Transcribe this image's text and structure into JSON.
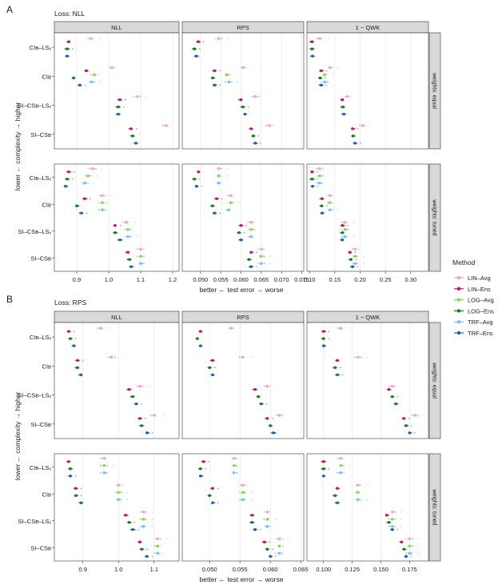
{
  "legend": {
    "title": "Method",
    "items": [
      {
        "label": "LIN–Avg",
        "color": "#f4a3c0"
      },
      {
        "label": "LIN–Ens",
        "color": "#c2185b"
      },
      {
        "label": "LOG–Avg",
        "color": "#8bd35a"
      },
      {
        "label": "LOG–Ens",
        "color": "#1b7a1b"
      },
      {
        "label": "TRF–Avg",
        "color": "#6ec3f0"
      },
      {
        "label": "TRF–Ens",
        "color": "#1f5fa8"
      }
    ]
  },
  "chart_data": [
    {
      "type": "scatter",
      "panel_letter": "A",
      "title": "Loss: NLL",
      "ylabel": "lower ← complexity → higher",
      "xlabel": "better ← test error → worse",
      "facet_columns": [
        "NLL",
        "RPS",
        "1 − QWK"
      ],
      "facet_rows": [
        "weights: equal",
        "weights: tuned"
      ],
      "categories": [
        "CI_B–LS_x",
        "CI_B",
        "SI–CS_B–LS_x",
        "SI–CS_B"
      ],
      "axes": [
        {
          "xlim": [
            0.83,
            1.22
          ],
          "ticks": [
            "0.9",
            "1.0",
            "1.1",
            "1.2"
          ]
        },
        {
          "xlim": [
            0.0455,
            0.0755
          ],
          "ticks": [
            "0.050",
            "0.055",
            "0.060",
            "0.065",
            "0.070",
            "0.075"
          ]
        },
        {
          "xlim": [
            0.095,
            0.335
          ],
          "ticks": [
            "0.10",
            "0.15",
            "0.20",
            "0.25",
            "0.30"
          ]
        }
      ],
      "grid": true,
      "series": [
        "LIN–Avg",
        "LIN–Ens",
        "LOG–Avg",
        "LOG–Ens",
        "TRF–Avg",
        "TRF–Ens"
      ],
      "means": [
        [
          [
            [
              0.945,
              0.875,
              null,
              0.87,
              null,
              0.87
            ],
            [
              1.01,
              0.93,
              0.955,
              0.89,
              0.945,
              0.91
            ],
            [
              1.09,
              1.035,
              null,
              1.03,
              null,
              1.03
            ],
            [
              1.18,
              1.07,
              null,
              1.075,
              null,
              1.085
            ]
          ],
          [
            [
              0.0545,
              0.0495,
              null,
              0.0485,
              null,
              0.049
            ],
            [
              0.0605,
              0.0535,
              0.0565,
              0.053,
              0.057,
              0.0535
            ],
            [
              0.0635,
              0.06,
              null,
              0.0605,
              null,
              0.061
            ],
            [
              0.067,
              0.0625,
              null,
              0.063,
              null,
              0.0635
            ]
          ],
          [
            [
              0.12,
              0.105,
              null,
              0.105,
              null,
              0.106
            ],
            [
              0.14,
              0.123,
              0.13,
              0.121,
              0.13,
              0.123
            ],
            [
              0.175,
              0.165,
              null,
              0.166,
              null,
              0.168
            ],
            [
              0.205,
              0.185,
              null,
              0.186,
              null,
              0.19
            ]
          ]
        ],
        [
          [
            [
              0.95,
              0.875,
              0.935,
              0.87,
              0.925,
              0.865
            ],
            [
              0.98,
              0.925,
              0.98,
              0.9,
              0.98,
              0.915
            ],
            [
              1.055,
              1.02,
              1.06,
              1.02,
              1.06,
              1.035
            ],
            [
              1.1,
              1.06,
              1.1,
              1.065,
              1.1,
              1.07
            ]
          ],
          [
            [
              0.0545,
              0.0495,
              0.0545,
              0.0485,
              0.0545,
              0.049
            ],
            [
              0.0575,
              0.054,
              0.0575,
              0.053,
              0.057,
              0.0535
            ],
            [
              0.0625,
              0.06,
              0.0625,
              0.0595,
              0.0625,
              0.06
            ],
            [
              0.065,
              0.0625,
              0.065,
              0.062,
              0.065,
              0.0625
            ]
          ],
          [
            [
              0.12,
              0.105,
              0.12,
              0.105,
              0.12,
              0.106
            ],
            [
              0.14,
              0.125,
              0.14,
              0.124,
              0.14,
              0.125
            ],
            [
              0.17,
              0.165,
              0.17,
              0.165,
              0.17,
              0.165
            ],
            [
              0.19,
              0.18,
              0.19,
              0.182,
              0.19,
              0.185
            ]
          ]
        ]
      ]
    },
    {
      "type": "scatter",
      "panel_letter": "B",
      "title": "Loss: RPS",
      "ylabel": "lower ← complexity → higher",
      "xlabel": "better ← test error → worse",
      "facet_columns": [
        "NLL",
        "RPS",
        "1 − QWK"
      ],
      "facet_rows": [
        "weights: equal",
        "weights: tuned"
      ],
      "categories": [
        "CI_B–LS_x",
        "CI_B",
        "SI–CS_B–LS_x",
        "SI–CS_B"
      ],
      "axes": [
        {
          "xlim": [
            0.82,
            1.17
          ],
          "ticks": [
            "0.9",
            "1.0",
            "1.1"
          ]
        },
        {
          "xlim": [
            0.0455,
            0.0655
          ],
          "ticks": [
            "0.050",
            "0.055",
            "0.060",
            "0.065"
          ]
        },
        {
          "xlim": [
            0.0855,
            0.1915
          ],
          "ticks": [
            "0.100",
            "0.125",
            "0.150",
            "0.175"
          ]
        }
      ],
      "grid": true,
      "series": [
        "LIN–Avg",
        "LIN–Ens",
        "LOG–Avg",
        "LOG–Ens",
        "TRF–Avg",
        "TRF–Ens"
      ],
      "means": [
        [
          [
            [
              0.95,
              0.86,
              null,
              0.865,
              null,
              0.875
            ],
            [
              0.98,
              0.885,
              null,
              0.885,
              null,
              0.895
            ],
            [
              1.06,
              1.03,
              null,
              1.04,
              null,
              1.05
            ],
            [
              1.1,
              1.06,
              null,
              1.065,
              null,
              1.08
            ]
          ],
          [
            [
              0.0535,
              0.0485,
              null,
              0.048,
              null,
              0.0485
            ],
            [
              0.0555,
              0.0505,
              null,
              0.05,
              null,
              0.0505
            ],
            [
              0.0595,
              0.0575,
              null,
              0.058,
              null,
              0.0585
            ],
            [
              0.0615,
              0.0595,
              null,
              0.06,
              null,
              0.0605
            ]
          ],
          [
            [
              0.115,
              0.1,
              null,
              0.1,
              null,
              0.1
            ],
            [
              0.13,
              0.112,
              null,
              0.11,
              null,
              0.112
            ],
            [
              0.16,
              0.157,
              null,
              0.16,
              null,
              0.163
            ],
            [
              0.18,
              0.17,
              null,
              0.172,
              null,
              0.175
            ]
          ]
        ],
        [
          [
            [
              0.96,
              0.86,
              0.96,
              0.865,
              0.96,
              0.865
            ],
            [
              1.0,
              0.88,
              1.0,
              0.88,
              1.0,
              0.895
            ],
            [
              1.07,
              1.02,
              1.07,
              1.03,
              1.07,
              1.04
            ],
            [
              1.11,
              1.06,
              1.11,
              1.065,
              1.11,
              1.08
            ]
          ],
          [
            [
              0.054,
              0.049,
              0.054,
              0.0485,
              0.054,
              0.0485
            ],
            [
              0.0555,
              0.0505,
              0.0555,
              0.05,
              0.0555,
              0.0505
            ],
            [
              0.0595,
              0.057,
              0.0595,
              0.057,
              0.0595,
              0.0575
            ],
            [
              0.0615,
              0.059,
              0.0615,
              0.0595,
              0.0615,
              0.06
            ]
          ],
          [
            [
              0.115,
              0.1,
              0.115,
              0.1,
              0.115,
              0.1
            ],
            [
              0.13,
              0.112,
              0.13,
              0.11,
              0.13,
              0.112
            ],
            [
              0.16,
              0.155,
              0.16,
              0.157,
              0.16,
              0.16
            ],
            [
              0.175,
              0.168,
              0.175,
              0.17,
              0.175,
              0.172
            ]
          ]
        ]
      ]
    }
  ]
}
